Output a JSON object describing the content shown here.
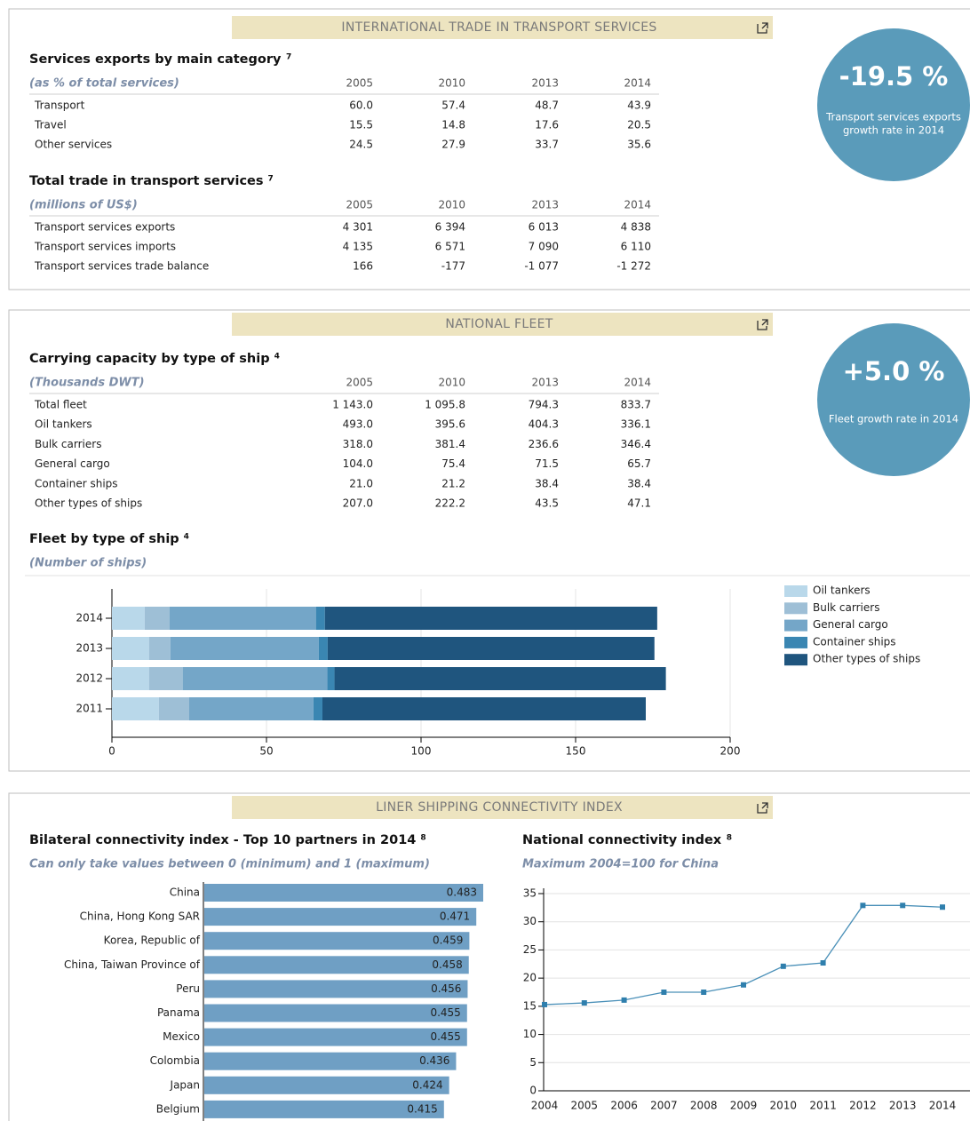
{
  "trade": {
    "header": "INTERNATIONAL TRADE IN TRANSPORT SERVICES",
    "kpi": {
      "value": "-19.5 %",
      "label_lines": [
        "Transport services exports",
        "growth rate in 2014"
      ]
    },
    "tables": [
      {
        "title": "Services exports by main category",
        "note": "7",
        "unit": "(as % of total services)",
        "columns": [
          "2005",
          "2010",
          "2013",
          "2014"
        ],
        "rows": [
          {
            "label": "Transport",
            "cells": [
              "60.0",
              "57.4",
              "48.7",
              "43.9"
            ]
          },
          {
            "label": "Travel",
            "cells": [
              "15.5",
              "14.8",
              "17.6",
              "20.5"
            ]
          },
          {
            "label": "Other services",
            "cells": [
              "24.5",
              "27.9",
              "33.7",
              "35.6"
            ]
          }
        ]
      },
      {
        "title": "Total trade in transport services",
        "note": "7",
        "unit": "(millions of US$)",
        "columns": [
          "2005",
          "2010",
          "2013",
          "2014"
        ],
        "rows": [
          {
            "label": "Transport services exports",
            "cells": [
              "4 301",
              "6 394",
              "6 013",
              "4 838"
            ]
          },
          {
            "label": "Transport services imports",
            "cells": [
              "4 135",
              "6 571",
              "7 090",
              "6 110"
            ]
          },
          {
            "label": "Transport services trade balance",
            "cells": [
              "166",
              "-177",
              "-1 077",
              "-1 272"
            ]
          }
        ]
      }
    ]
  },
  "fleet": {
    "header": "NATIONAL FLEET",
    "kpi": {
      "value": "+5.0 %",
      "label_lines": [
        "Fleet growth rate in 2014"
      ]
    },
    "table": {
      "title": "Carrying capacity by type of ship",
      "note": "4",
      "unit": "(Thousands DWT)",
      "columns": [
        "2005",
        "2010",
        "2013",
        "2014"
      ],
      "rows": [
        {
          "label": "Total fleet",
          "cells": [
            "1 143.0",
            "1 095.8",
            "794.3",
            "833.7"
          ]
        },
        {
          "label": "Oil tankers",
          "cells": [
            "493.0",
            "395.6",
            "404.3",
            "336.1"
          ]
        },
        {
          "label": "Bulk carriers",
          "cells": [
            "318.0",
            "381.4",
            "236.6",
            "346.4"
          ]
        },
        {
          "label": "General cargo",
          "cells": [
            "104.0",
            "75.4",
            "71.5",
            "65.7"
          ]
        },
        {
          "label": "Container ships",
          "cells": [
            "21.0",
            "21.2",
            "38.4",
            "38.4"
          ]
        },
        {
          "label": "Other types of ships",
          "cells": [
            "207.0",
            "222.2",
            "43.5",
            "47.1"
          ]
        }
      ]
    },
    "chart_title": "Fleet by type of ship",
    "chart_note": "4",
    "chart_unit": "(Number of ships)",
    "chart_data": {
      "type": "bar",
      "orientation": "horizontal",
      "stacked": true,
      "legend": "right",
      "grid": true,
      "categories": [
        "2014",
        "2013",
        "2012",
        "2011"
      ],
      "series": [
        {
          "name": "Oil tankers",
          "color": "#b9d8ea",
          "values": [
            10.6,
            12,
            12,
            15.2
          ]
        },
        {
          "name": "Bulk carriers",
          "color": "#9ebfd6",
          "values": [
            8,
            6.9,
            10.9,
            9.8
          ]
        },
        {
          "name": "General cargo",
          "color": "#74a6c8",
          "values": [
            47.4,
            48,
            46.8,
            40.2
          ]
        },
        {
          "name": "Container ships",
          "color": "#3a86b2",
          "values": [
            2.9,
            2.9,
            2.3,
            2.9
          ]
        },
        {
          "name": "Other types of ships",
          "color": "#1f557e",
          "values": [
            107.5,
            105.7,
            107.2,
            104.6
          ]
        }
      ],
      "xlim": [
        0,
        200
      ],
      "xticks": [
        0,
        50,
        100,
        150,
        200
      ]
    }
  },
  "connectivity": {
    "header": "LINER SHIPPING CONNECTIVITY INDEX",
    "bilateral": {
      "title": "Bilateral connectivity index - Top 10 partners in 2014",
      "note": "8",
      "subtitle": "Can only take values between 0 (minimum) and 1 (maximum)",
      "chart_data": {
        "type": "bar",
        "orientation": "horizontal",
        "color": "#6f9fc4",
        "categories": [
          "China",
          "China, Hong Kong SAR",
          "Korea, Republic of",
          "China, Taiwan Province of",
          "Peru",
          "Panama",
          "Mexico",
          "Colombia",
          "Japan",
          "Belgium"
        ],
        "values": [
          0.483,
          0.471,
          0.459,
          0.458,
          0.456,
          0.455,
          0.455,
          0.436,
          0.424,
          0.415
        ]
      }
    },
    "national": {
      "title": "National connectivity index",
      "note": "8",
      "subtitle": "Maximum 2004=100 for China",
      "chart_data": {
        "type": "line",
        "color": "#4a90b8",
        "grid": true,
        "categories": [
          "2004",
          "2005",
          "2006",
          "2007",
          "2008",
          "2009",
          "2010",
          "2011",
          "2012",
          "2013",
          "2014"
        ],
        "values": [
          15.3,
          15.6,
          16.1,
          17.5,
          17.5,
          18.8,
          22.1,
          22.7,
          32.9,
          32.9,
          32.6
        ],
        "ylim": [
          0,
          35
        ],
        "yticks": [
          0,
          5,
          10,
          15,
          20,
          25,
          30,
          35
        ]
      }
    }
  }
}
